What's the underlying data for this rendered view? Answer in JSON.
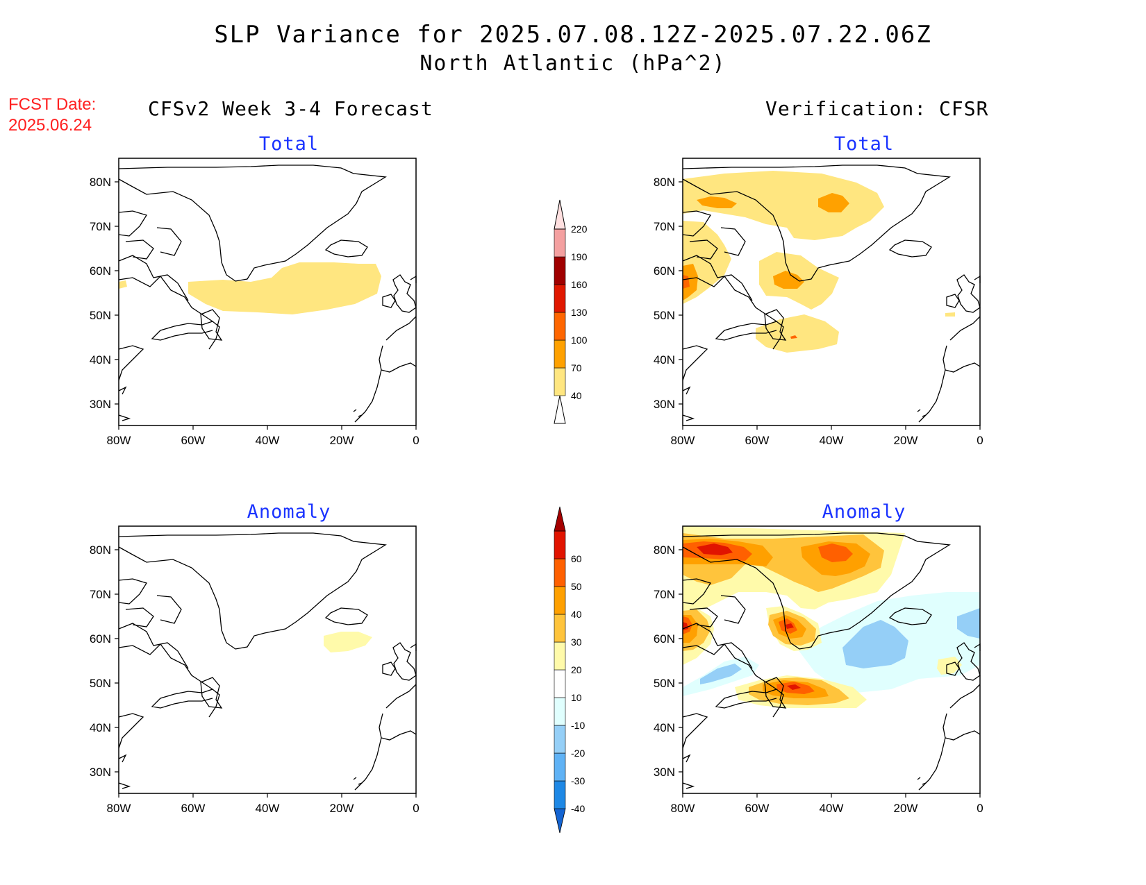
{
  "title": {
    "line1": "SLP Variance for 2025.07.08.12Z-2025.07.22.06Z",
    "line2": "North Atlantic (hPa^2)"
  },
  "fcst_date": {
    "label": "FCST Date:",
    "value": "2025.06.24"
  },
  "columns": {
    "left": "CFSv2 Week 3-4 Forecast",
    "right": "Verification: CFSR"
  },
  "panels": {
    "top_left": "Total",
    "top_right": "Total",
    "bottom_left": "Anomaly",
    "bottom_right": "Anomaly"
  },
  "axes": {
    "lon_ticks": [
      "80W",
      "60W",
      "40W",
      "20W",
      "0"
    ],
    "lat_ticks": [
      "80N",
      "70N",
      "60N",
      "50N",
      "40N",
      "30N"
    ],
    "lon_range": [
      -80,
      0
    ],
    "lat_range": [
      25,
      85
    ]
  },
  "colorbars": {
    "total": {
      "levels": [
        "40",
        "70",
        "100",
        "130",
        "160",
        "190",
        "220"
      ],
      "colors": [
        "#ffe680",
        "#ffa100",
        "#ff6600",
        "#e01800",
        "#a00000",
        "#f4a0a0",
        "#ffe0e0"
      ]
    },
    "anomaly": {
      "levels": [
        "-40",
        "-30",
        "-20",
        "-10",
        "10",
        "20",
        "30",
        "40",
        "50",
        "60"
      ],
      "colors": [
        "#1464d2",
        "#1e88e5",
        "#5fb2f5",
        "#95cff7",
        "#e0fffe",
        "#ffffff",
        "#fffaaa",
        "#ffc43c",
        "#ffa000",
        "#ff6000",
        "#e11400",
        "#a50000"
      ]
    }
  }
}
